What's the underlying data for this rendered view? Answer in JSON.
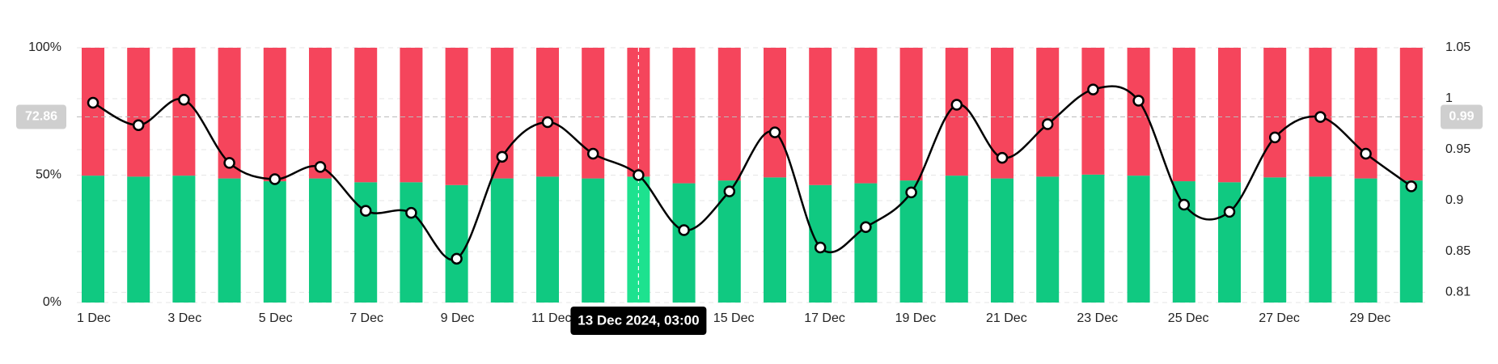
{
  "chart_data": {
    "type": "bar",
    "categories": [
      "1 Dec",
      null,
      "3 Dec",
      null,
      "5 Dec",
      null,
      "7 Dec",
      null,
      "9 Dec",
      null,
      "11 Dec",
      null,
      "13 Dec",
      null,
      "15 Dec",
      null,
      "17 Dec",
      null,
      "19 Dec",
      null,
      "21 Dec",
      null,
      "23 Dec",
      null,
      "25 Dec",
      null,
      "27 Dec",
      null,
      "29 Dec",
      null
    ],
    "series": [
      {
        "type": "bar",
        "color": "#10c981",
        "values": [
          49.8,
          49.4,
          49.8,
          48.7,
          47.6,
          48.7,
          47.2,
          47.2,
          46.1,
          48.7,
          49.4,
          48.7,
          49.4,
          46.8,
          47.9,
          49.1,
          46.1,
          46.8,
          47.9,
          49.8,
          48.7,
          49.4,
          50.2,
          49.8,
          47.6,
          47.2,
          49.1,
          49.4,
          48.7,
          47.9
        ]
      },
      {
        "type": "bar",
        "color": "#f5455c",
        "values": [
          50.2,
          50.6,
          50.2,
          51.3,
          52.4,
          51.3,
          52.8,
          52.8,
          53.9,
          51.3,
          50.6,
          51.3,
          50.6,
          53.2,
          52.1,
          50.9,
          53.9,
          53.2,
          52.1,
          50.2,
          51.3,
          50.6,
          49.8,
          50.2,
          52.4,
          52.8,
          50.9,
          50.6,
          51.3,
          52.1
        ]
      },
      {
        "type": "line",
        "axis": "y2",
        "color": "#000000",
        "values": [
          0.996,
          0.974,
          0.999,
          0.937,
          0.921,
          0.933,
          0.89,
          0.888,
          0.843,
          0.943,
          0.977,
          0.946,
          0.925,
          0.871,
          0.909,
          0.967,
          0.854,
          0.874,
          0.908,
          0.994,
          0.942,
          0.975,
          1.009,
          0.998,
          0.896,
          0.889,
          0.962,
          0.982,
          0.946,
          0.914
        ]
      }
    ],
    "ylim": [
      0,
      100
    ],
    "yticks": [
      {
        "value": 0,
        "label": "0%"
      },
      {
        "value": 50,
        "label": "50%"
      },
      {
        "value": 100,
        "label": "100%"
      }
    ],
    "y2lim": [
      0.8,
      1.05
    ],
    "y2ticks": [
      0.81,
      0.85,
      0.9,
      0.95,
      1,
      1.05
    ],
    "grid": true,
    "highlight_color": "#1de28f",
    "crosshair": {
      "label": "13 Dec 2024, 03:00",
      "y": 72.86,
      "y2": 0.99
    }
  }
}
